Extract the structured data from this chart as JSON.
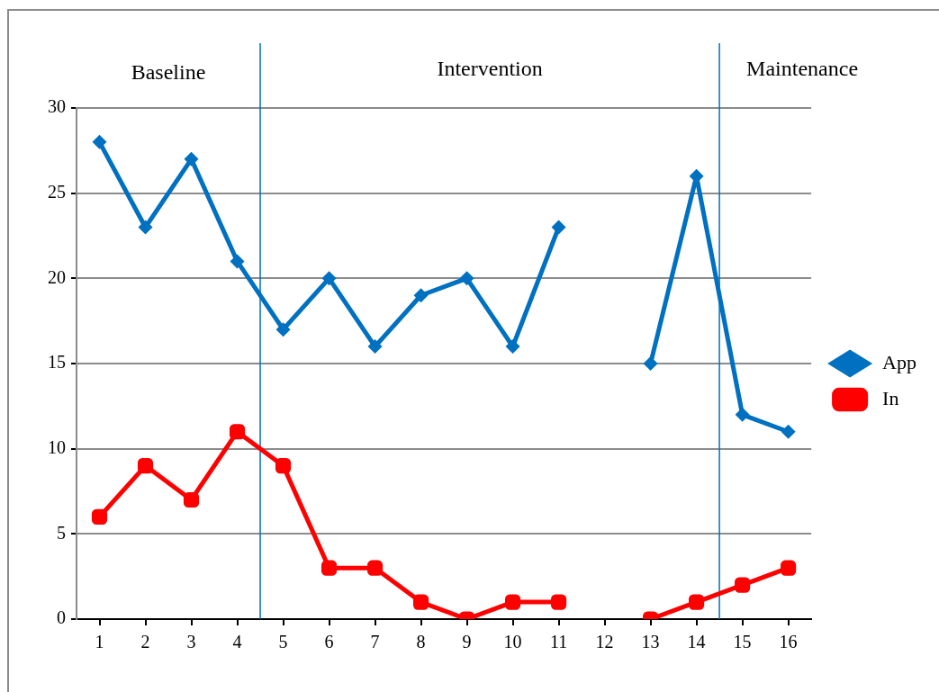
{
  "chart_data": {
    "type": "line",
    "x": [
      1,
      2,
      3,
      4,
      5,
      6,
      7,
      8,
      9,
      10,
      11,
      12,
      13,
      14,
      15,
      16
    ],
    "xlim": [
      0.5,
      16.5
    ],
    "xticks": [
      1,
      2,
      3,
      4,
      5,
      6,
      7,
      8,
      9,
      10,
      11,
      12,
      13,
      14,
      15,
      16
    ],
    "ylim": [
      0,
      30
    ],
    "yticks": [
      0,
      5,
      10,
      15,
      20,
      25,
      30
    ],
    "series": [
      {
        "name": "App",
        "color": "#0070c0",
        "marker": "diamond",
        "values": [
          28,
          23,
          27,
          21,
          17,
          20,
          16,
          19,
          20,
          16,
          23,
          null,
          15,
          26,
          12,
          11
        ]
      },
      {
        "name": "In",
        "color": "#ff0000",
        "marker": "square",
        "values": [
          6,
          9,
          7,
          11,
          9,
          3,
          3,
          1,
          0,
          1,
          1,
          null,
          0,
          1,
          2,
          3
        ]
      }
    ],
    "ref_lines": [
      {
        "axis": "x",
        "value": 4.5,
        "color": "#0070c0"
      },
      {
        "axis": "x",
        "value": 14.5,
        "color": "#0070c0"
      }
    ],
    "annotations": [
      "Baseline",
      "Intervention",
      "Maintenance"
    ],
    "grid": "y",
    "legend": "right"
  }
}
